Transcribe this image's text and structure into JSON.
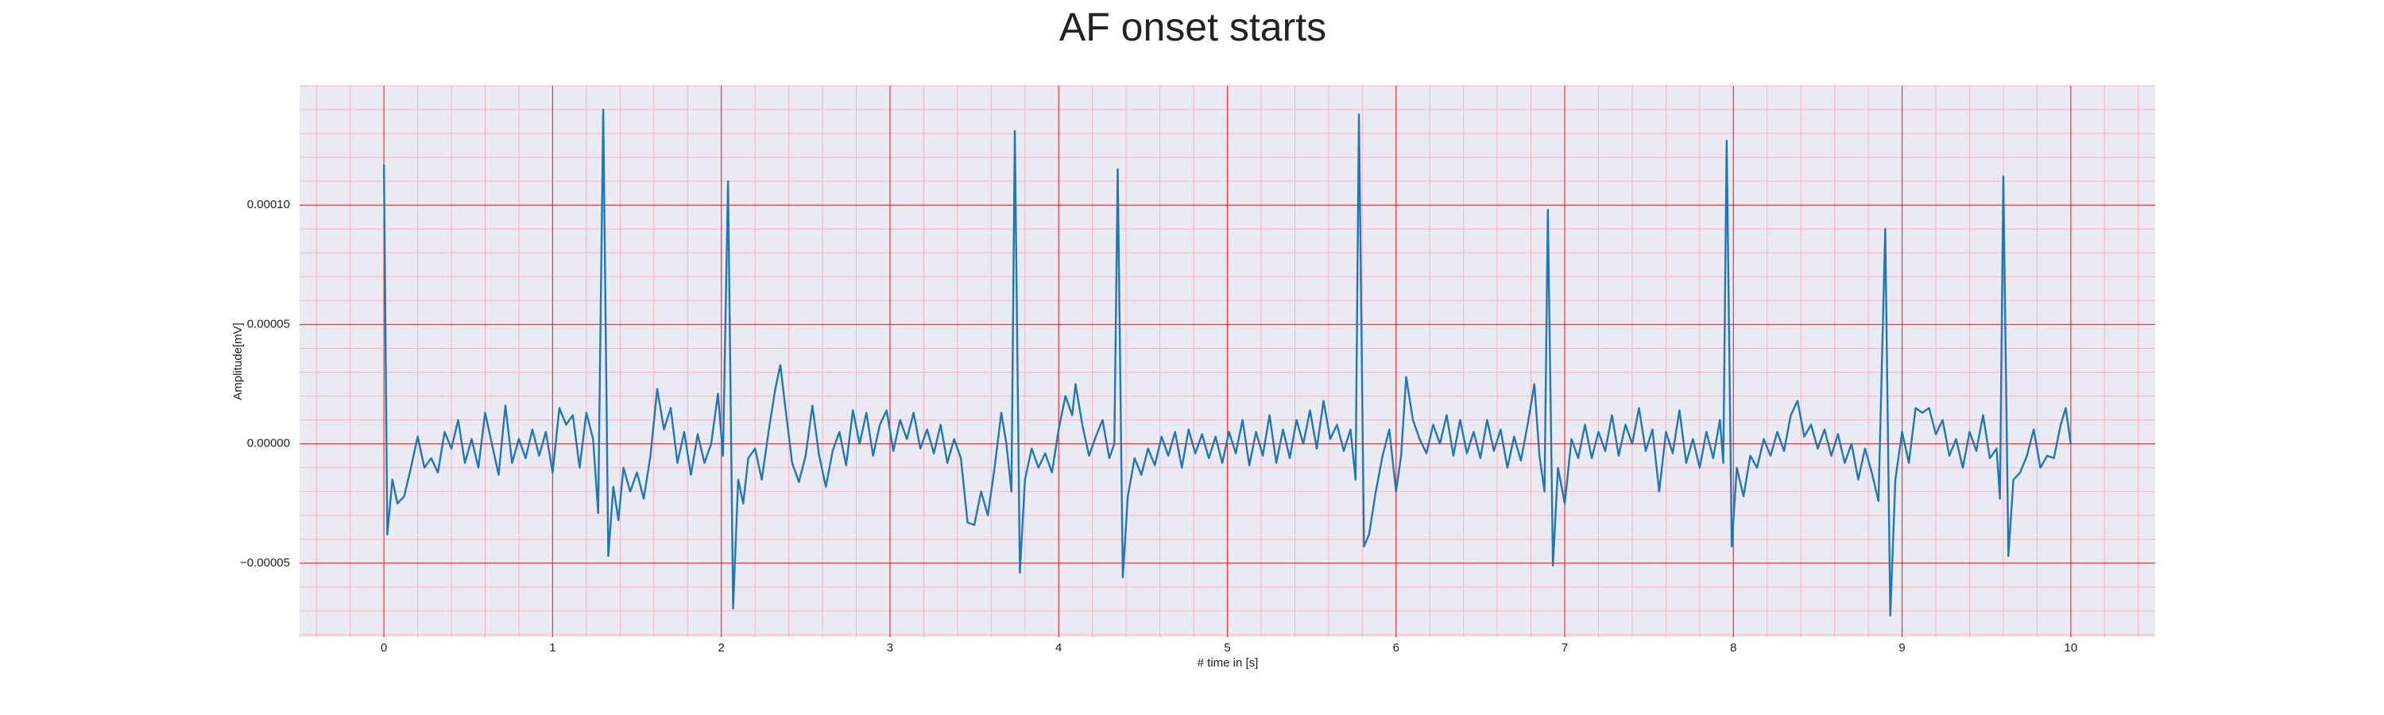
{
  "chart_data": {
    "type": "line",
    "title": "AF onset starts",
    "xlabel": "# time in [s]",
    "ylabel": "Amplitude[mV]",
    "color": "#1f77b4",
    "xlim": [
      -0.5,
      10.5
    ],
    "ylim": [
      -8.1e-05,
      0.00015
    ],
    "xticks": [
      0,
      1,
      2,
      3,
      4,
      5,
      6,
      7,
      8,
      9,
      10
    ],
    "yticks": [
      {
        "value": -5e-05,
        "label": "−0.00005"
      },
      {
        "value": 0,
        "label": "0.00000"
      },
      {
        "value": 5e-05,
        "label": "0.00005"
      },
      {
        "value": 0.0001,
        "label": "0.00010"
      }
    ],
    "grid": true,
    "grid_color": "#ff0000",
    "minor_grid": true,
    "minor_grid_color": "#ffb0c0",
    "minor_divisions": 5,
    "background": "#eaeaf2",
    "x": [
      0,
      0.02,
      0.05,
      0.08,
      0.12,
      0.16,
      0.2,
      0.24,
      0.28,
      0.32,
      0.36,
      0.4,
      0.44,
      0.48,
      0.52,
      0.56,
      0.6,
      0.64,
      0.68,
      0.72,
      0.76,
      0.8,
      0.84,
      0.88,
      0.92,
      0.96,
      1.0,
      1.04,
      1.08,
      1.12,
      1.16,
      1.2,
      1.24,
      1.27,
      1.3,
      1.33,
      1.36,
      1.39,
      1.42,
      1.46,
      1.5,
      1.54,
      1.58,
      1.62,
      1.66,
      1.7,
      1.74,
      1.78,
      1.82,
      1.86,
      1.9,
      1.94,
      1.98,
      2.01,
      2.04,
      2.07,
      2.1,
      2.13,
      2.16,
      2.2,
      2.24,
      2.28,
      2.32,
      2.35,
      2.38,
      2.42,
      2.46,
      2.5,
      2.54,
      2.58,
      2.62,
      2.66,
      2.7,
      2.74,
      2.78,
      2.82,
      2.86,
      2.9,
      2.94,
      2.98,
      3.02,
      3.06,
      3.1,
      3.14,
      3.18,
      3.22,
      3.26,
      3.3,
      3.34,
      3.38,
      3.42,
      3.46,
      3.5,
      3.54,
      3.58,
      3.62,
      3.66,
      3.69,
      3.72,
      3.74,
      3.77,
      3.8,
      3.84,
      3.88,
      3.92,
      3.96,
      4.0,
      4.04,
      4.08,
      4.1,
      4.14,
      4.18,
      4.22,
      4.26,
      4.3,
      4.33,
      4.35,
      4.38,
      4.41,
      4.45,
      4.49,
      4.53,
      4.57,
      4.61,
      4.65,
      4.69,
      4.73,
      4.77,
      4.81,
      4.85,
      4.89,
      4.93,
      4.97,
      5.01,
      5.05,
      5.09,
      5.13,
      5.17,
      5.21,
      5.25,
      5.29,
      5.33,
      5.37,
      5.41,
      5.45,
      5.49,
      5.53,
      5.57,
      5.61,
      5.65,
      5.69,
      5.73,
      5.76,
      5.78,
      5.81,
      5.84,
      5.88,
      5.92,
      5.96,
      6.0,
      6.03,
      6.06,
      6.1,
      6.14,
      6.18,
      6.22,
      6.26,
      6.3,
      6.34,
      6.38,
      6.42,
      6.46,
      6.5,
      6.54,
      6.58,
      6.62,
      6.66,
      6.7,
      6.74,
      6.78,
      6.82,
      6.85,
      6.88,
      6.9,
      6.93,
      6.96,
      7.0,
      7.04,
      7.08,
      7.12,
      7.16,
      7.2,
      7.24,
      7.28,
      7.32,
      7.36,
      7.4,
      7.44,
      7.48,
      7.52,
      7.56,
      7.6,
      7.64,
      7.68,
      7.72,
      7.76,
      7.8,
      7.84,
      7.88,
      7.92,
      7.94,
      7.96,
      7.99,
      8.02,
      8.06,
      8.1,
      8.14,
      8.18,
      8.22,
      8.26,
      8.3,
      8.34,
      8.38,
      8.42,
      8.46,
      8.5,
      8.54,
      8.58,
      8.62,
      8.66,
      8.7,
      8.74,
      8.78,
      8.82,
      8.86,
      8.9,
      8.93,
      8.96,
      9.0,
      9.04,
      9.08,
      9.12,
      9.16,
      9.2,
      9.24,
      9.28,
      9.32,
      9.36,
      9.4,
      9.44,
      9.48,
      9.52,
      9.56,
      9.58,
      9.6,
      9.63,
      9.66,
      9.7,
      9.74,
      9.78,
      9.82,
      9.86,
      9.9,
      9.94,
      9.97,
      10.0
    ],
    "values": [
      0.000117,
      -3.8e-05,
      -1.5e-05,
      -2.5e-05,
      -2.2e-05,
      -1e-05,
      3e-06,
      -1e-05,
      -6e-06,
      -1.2e-05,
      5e-06,
      -2e-06,
      1e-05,
      -8e-06,
      2e-06,
      -1e-05,
      1.3e-05,
      0,
      -1.3e-05,
      1.6e-05,
      -8e-06,
      2e-06,
      -6e-06,
      6e-06,
      -5e-06,
      5e-06,
      -1.2e-05,
      1.5e-05,
      8e-06,
      1.2e-05,
      -1e-05,
      1.3e-05,
      2e-06,
      -2.9e-05,
      0.00014,
      -4.7e-05,
      -1.8e-05,
      -3.2e-05,
      -1e-05,
      -2e-05,
      -1.2e-05,
      -2.3e-05,
      -5e-06,
      2.3e-05,
      6e-06,
      1.5e-05,
      -8e-06,
      5e-06,
      -1.3e-05,
      4e-06,
      -8e-06,
      0,
      2.1e-05,
      -5e-06,
      0.00011,
      -6.9e-05,
      -1.5e-05,
      -2.5e-05,
      -6e-06,
      -2e-06,
      -1.5e-05,
      5e-06,
      2.3e-05,
      3.3e-05,
      1.5e-05,
      -8e-06,
      -1.6e-05,
      -5e-06,
      1.6e-05,
      -5e-06,
      -1.8e-05,
      -3e-06,
      5e-06,
      -9e-06,
      1.4e-05,
      0,
      1.3e-05,
      -5e-06,
      8e-06,
      1.4e-05,
      -3e-06,
      1e-05,
      2e-06,
      1.3e-05,
      -2e-06,
      6e-06,
      -4e-06,
      8e-06,
      -8e-06,
      2e-06,
      -6e-06,
      -3.3e-05,
      -3.4e-05,
      -2e-05,
      -3e-05,
      -1e-05,
      1.3e-05,
      0,
      -2e-05,
      0.000131,
      -5.4e-05,
      -1.5e-05,
      -2e-06,
      -1e-05,
      -4e-06,
      -1.2e-05,
      6e-06,
      2e-05,
      1.2e-05,
      2.5e-05,
      8e-06,
      -5e-06,
      3e-06,
      1e-05,
      -6e-06,
      0,
      0.000115,
      -5.6e-05,
      -2.2e-05,
      -6e-06,
      -1.3e-05,
      -2e-06,
      -9e-06,
      3e-06,
      -5e-06,
      5e-06,
      -1e-05,
      6e-06,
      -4e-06,
      4e-06,
      -6e-06,
      3e-06,
      -8e-06,
      5e-06,
      -4e-06,
      1e-05,
      -9e-06,
      5e-06,
      -5e-06,
      1.2e-05,
      -8e-06,
      6e-06,
      -6e-06,
      1e-05,
      0,
      1.4e-05,
      -2e-06,
      1.8e-05,
      2e-06,
      8e-06,
      -3e-06,
      6e-06,
      -1.5e-05,
      0.000138,
      -4.3e-05,
      -3.8e-05,
      -2e-05,
      -5e-06,
      6e-06,
      -2e-05,
      -5e-06,
      2.8e-05,
      1e-05,
      2e-06,
      -4e-06,
      8e-06,
      0,
      1.2e-05,
      -5e-06,
      1e-05,
      -4e-06,
      5e-06,
      -6e-06,
      1e-05,
      -3e-06,
      6e-06,
      -1e-05,
      3e-06,
      -7e-06,
      8e-06,
      2.5e-05,
      -5e-06,
      -2e-05,
      9.8e-05,
      -5.1e-05,
      -1e-05,
      -2.5e-05,
      2e-06,
      -6e-06,
      8e-06,
      -6e-06,
      5e-06,
      -3e-06,
      1.2e-05,
      -5e-06,
      8e-06,
      0,
      1.5e-05,
      -3e-06,
      6e-06,
      -2e-05,
      5e-06,
      -4e-06,
      1.4e-05,
      -8e-06,
      2e-06,
      -1e-05,
      5e-06,
      -6e-06,
      1e-05,
      -8e-06,
      0.000127,
      -4.3e-05,
      -1e-05,
      -2.2e-05,
      -5e-06,
      -1e-05,
      2e-06,
      -5e-06,
      5e-06,
      -3e-06,
      1.2e-05,
      1.8e-05,
      3e-06,
      8e-06,
      -2e-06,
      6e-06,
      -5e-06,
      4e-06,
      -8e-06,
      0,
      -1.5e-05,
      -2e-06,
      -1.2e-05,
      -2.4e-05,
      9e-05,
      -7.2e-05,
      -1.5e-05,
      5e-06,
      -8e-06,
      1.5e-05,
      1.3e-05,
      1.5e-05,
      4e-06,
      1e-05,
      -5e-06,
      2e-06,
      -1e-05,
      5e-06,
      -3e-06,
      1.2e-05,
      -6e-06,
      -2e-06,
      -2.3e-05,
      0.000112,
      -4.7e-05,
      -1.5e-05,
      -1.2e-05,
      -5e-06,
      6e-06,
      -1e-05,
      -5e-06,
      -6e-06,
      8e-06,
      1.5e-05,
      0
    ]
  }
}
